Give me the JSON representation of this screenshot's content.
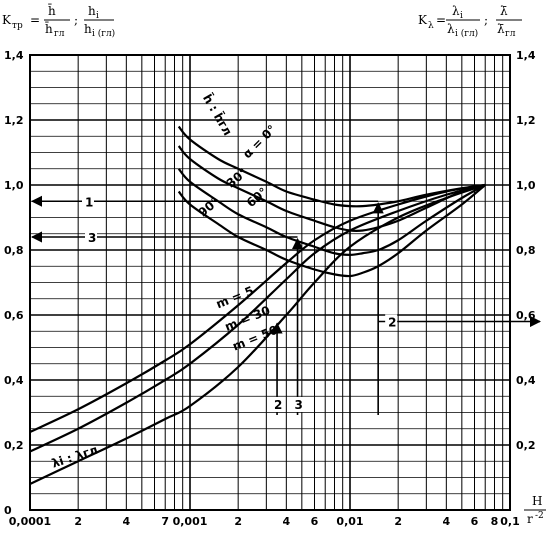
{
  "header": {
    "left_formula": {
      "lhs": "K",
      "lhs_sub": "тр",
      "eq": "=",
      "num1": "h̄",
      "den1": "h̄",
      "den1_sub": "гл",
      "sep": ";",
      "num2": "h",
      "num2_sub": "i",
      "den2": "h",
      "den2_sub": "i (гл)"
    },
    "right_formula": {
      "lhs": "K",
      "lhs_sub": "λ",
      "eq": "=",
      "num1": "λ",
      "num1_sub": "i",
      "den1": "λ",
      "den1_sub": "i (гл)",
      "sep": ";",
      "num2": "λ̄",
      "den2": "λ̄",
      "den2_sub": "гл"
    },
    "x_axis_label_num": "H",
    "x_axis_label_den": "r",
    "x_axis_label_den_sup": "-2"
  },
  "chart_data": {
    "type": "line",
    "xscale": "log",
    "xlim": [
      0.0001,
      0.1
    ],
    "ylim": [
      0,
      1.4
    ],
    "grid": true,
    "x_tick_labels": [
      "0,0001",
      "2",
      "4",
      "7",
      "0,001",
      "2",
      "4",
      "6",
      "0,01",
      "2",
      "4",
      "6",
      "8",
      "0,1"
    ],
    "y_tick_labels_left": [
      "0",
      "0,2",
      "0,4",
      "0,6",
      "0,8",
      "1,0",
      "1,2",
      "1,4"
    ],
    "y_tick_labels_right": [
      "0,2",
      "0,4",
      "0,6",
      "0,8",
      "1,0",
      "1,2",
      "1,4"
    ],
    "series": [
      {
        "name": "α = 0°",
        "x": [
          0.00085,
          0.001,
          0.0015,
          0.002,
          0.003,
          0.004,
          0.006,
          0.008,
          0.01,
          0.012,
          0.015,
          0.02,
          0.03,
          0.05,
          0.07
        ],
        "y": [
          1.18,
          1.14,
          1.08,
          1.05,
          1.01,
          0.98,
          0.955,
          0.94,
          0.935,
          0.935,
          0.94,
          0.95,
          0.97,
          0.99,
          1.0
        ]
      },
      {
        "name": "α = 30°",
        "x": [
          0.00085,
          0.001,
          0.0015,
          0.002,
          0.003,
          0.004,
          0.006,
          0.008,
          0.01,
          0.012,
          0.015,
          0.02,
          0.03,
          0.05,
          0.07
        ],
        "y": [
          1.12,
          1.08,
          1.02,
          0.99,
          0.95,
          0.92,
          0.89,
          0.87,
          0.86,
          0.86,
          0.87,
          0.89,
          0.93,
          0.98,
          1.0
        ]
      },
      {
        "name": "α = 60°",
        "x": [
          0.00085,
          0.001,
          0.0015,
          0.002,
          0.003,
          0.004,
          0.006,
          0.008,
          0.01,
          0.012,
          0.015,
          0.02,
          0.03,
          0.05,
          0.07
        ],
        "y": [
          1.05,
          1.01,
          0.95,
          0.91,
          0.87,
          0.84,
          0.81,
          0.79,
          0.785,
          0.79,
          0.8,
          0.83,
          0.89,
          0.96,
          1.0
        ]
      },
      {
        "name": "α = 90°",
        "x": [
          0.00085,
          0.001,
          0.0015,
          0.002,
          0.003,
          0.004,
          0.006,
          0.008,
          0.01,
          0.012,
          0.015,
          0.02,
          0.03,
          0.05,
          0.07
        ],
        "y": [
          0.98,
          0.94,
          0.88,
          0.84,
          0.8,
          0.77,
          0.74,
          0.725,
          0.72,
          0.73,
          0.75,
          0.79,
          0.86,
          0.94,
          1.0
        ]
      },
      {
        "name": "m = 5",
        "x": [
          0.0001,
          0.0002,
          0.0004,
          0.0007,
          0.001,
          0.002,
          0.004,
          0.006,
          0.01,
          0.02,
          0.04,
          0.07
        ],
        "y": [
          0.24,
          0.31,
          0.39,
          0.46,
          0.51,
          0.63,
          0.76,
          0.83,
          0.89,
          0.94,
          0.98,
          1.0
        ]
      },
      {
        "name": "m = 30",
        "x": [
          0.0001,
          0.0002,
          0.0004,
          0.0007,
          0.001,
          0.002,
          0.004,
          0.006,
          0.01,
          0.02,
          0.04,
          0.07
        ],
        "y": [
          0.18,
          0.25,
          0.33,
          0.4,
          0.45,
          0.57,
          0.71,
          0.79,
          0.86,
          0.92,
          0.97,
          1.0
        ]
      },
      {
        "name": "m = 50",
        "x": [
          0.0001,
          0.0002,
          0.0004,
          0.0007,
          0.001,
          0.002,
          0.004,
          0.006,
          0.01,
          0.02,
          0.04,
          0.07
        ],
        "y": [
          0.08,
          0.15,
          0.22,
          0.28,
          0.32,
          0.44,
          0.6,
          0.7,
          0.81,
          0.9,
          0.96,
          1.0
        ]
      }
    ],
    "annotations": [
      {
        "text": "α = 0°",
        "x": 0.0023,
        "y": 1.08
      },
      {
        "text": "30°",
        "x": 0.0018,
        "y": 0.99
      },
      {
        "text": "60°",
        "x": 0.0024,
        "y": 0.93
      },
      {
        "text": "90°",
        "x": 0.0012,
        "y": 0.9
      },
      {
        "text": "h̄ : h̄гл",
        "x": 0.0012,
        "y": 1.27
      },
      {
        "text": "m = 5",
        "x": 0.0015,
        "y": 0.62
      },
      {
        "text": "m = 30",
        "x": 0.0017,
        "y": 0.55
      },
      {
        "text": "m = 50",
        "x": 0.0019,
        "y": 0.49
      },
      {
        "text": "λi : λгл",
        "x": 0.00014,
        "y": 0.13
      }
    ],
    "guide_lines": [
      {
        "label": "1",
        "y": 0.95,
        "x_end": 0.015
      },
      {
        "label": "3",
        "y": 0.84,
        "x_end": 0.0047
      },
      {
        "label": "2",
        "y": 0.58,
        "x_start": 0.015
      }
    ],
    "vertical_guides": [
      {
        "label": "2",
        "x": 0.0035,
        "y_top": 0.58
      },
      {
        "label": "3",
        "x": 0.0047,
        "y_top": 0.84
      },
      {
        "label": "",
        "x": 0.015,
        "y_top": 0.95
      }
    ]
  }
}
